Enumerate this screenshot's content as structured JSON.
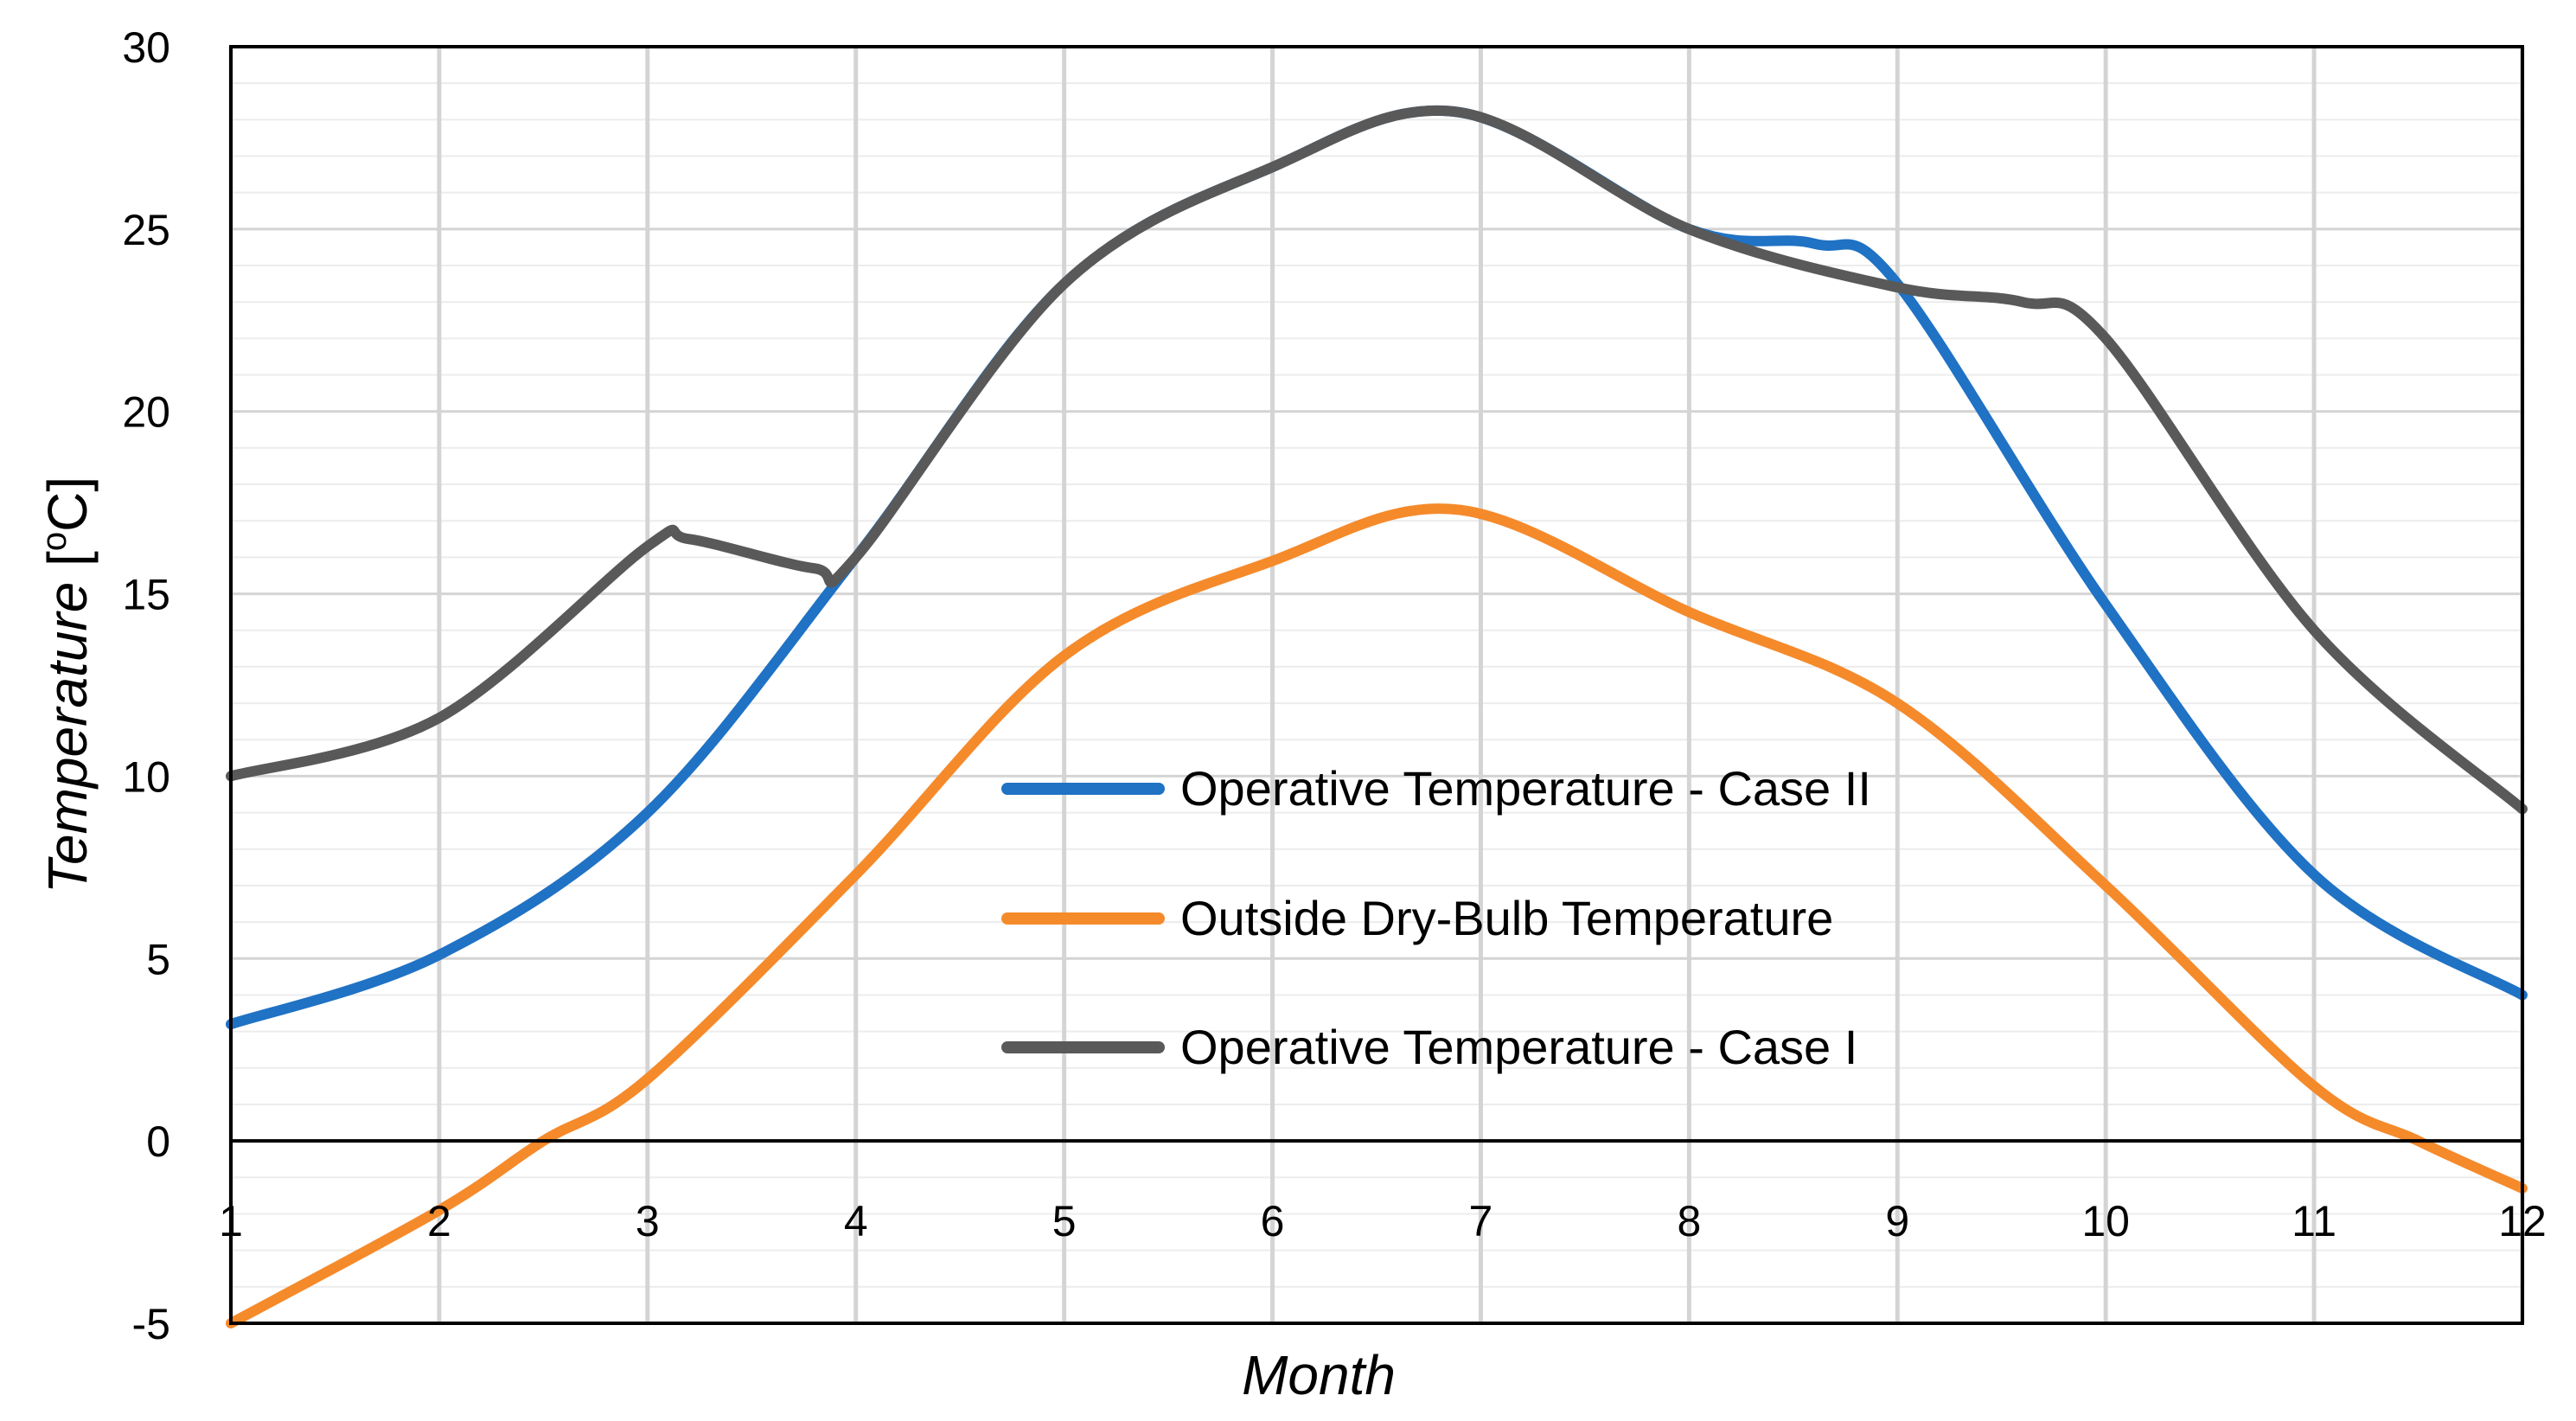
{
  "chart_data": {
    "type": "line",
    "title": "",
    "xlabel": "Month",
    "ylabel_main": "Temperature",
    "ylabel_unit_open": "[",
    "ylabel_unit_sup": "o",
    "ylabel_unit_close": "C]",
    "xlim": [
      1,
      12
    ],
    "ylim": [
      -5,
      30
    ],
    "x_ticks": [
      1,
      2,
      3,
      4,
      5,
      6,
      7,
      8,
      9,
      10,
      11,
      12
    ],
    "y_ticks": [
      -5,
      0,
      5,
      10,
      15,
      20,
      25,
      30
    ],
    "grid": true,
    "legend_position": "center",
    "series": [
      {
        "name": "Operative Temperature - Case II",
        "color": "#1f72c4",
        "points": [
          [
            1,
            3.2
          ],
          [
            2,
            5.1
          ],
          [
            3,
            9.0
          ],
          [
            4,
            16.0
          ],
          [
            5,
            23.5
          ],
          [
            6,
            26.7
          ],
          [
            6.9,
            28.2
          ],
          [
            8,
            25.0
          ],
          [
            8.6,
            24.6
          ],
          [
            9,
            23.5
          ],
          [
            10,
            14.7
          ],
          [
            11,
            7.3
          ],
          [
            12,
            4.0
          ]
        ]
      },
      {
        "name": "Outside Dry-Bulb Temperature",
        "color": "#f58a2b",
        "points": [
          [
            1,
            -5.0
          ],
          [
            2,
            -1.9
          ],
          [
            2.5,
            0.0
          ],
          [
            3,
            1.7
          ],
          [
            4,
            7.3
          ],
          [
            5,
            13.3
          ],
          [
            6,
            15.9
          ],
          [
            6.9,
            17.3
          ],
          [
            8,
            14.5
          ],
          [
            9,
            12.0
          ],
          [
            10,
            7.0
          ],
          [
            11,
            1.5
          ],
          [
            11.5,
            0.0
          ],
          [
            12,
            -1.3
          ]
        ]
      },
      {
        "name": "Operative Temperature - Case I",
        "color": "#595959",
        "points": [
          [
            1,
            10.0
          ],
          [
            2,
            11.6
          ],
          [
            3,
            16.3
          ],
          [
            3.2,
            16.5
          ],
          [
            3.8,
            15.7
          ],
          [
            4,
            16.0
          ],
          [
            5,
            23.5
          ],
          [
            6,
            26.7
          ],
          [
            6.9,
            28.2
          ],
          [
            8,
            25.0
          ],
          [
            9,
            23.4
          ],
          [
            9.6,
            23.0
          ],
          [
            10,
            22.0
          ],
          [
            11,
            14.0
          ],
          [
            12,
            9.1
          ]
        ]
      }
    ],
    "legend_order": [
      0,
      1,
      2
    ]
  }
}
